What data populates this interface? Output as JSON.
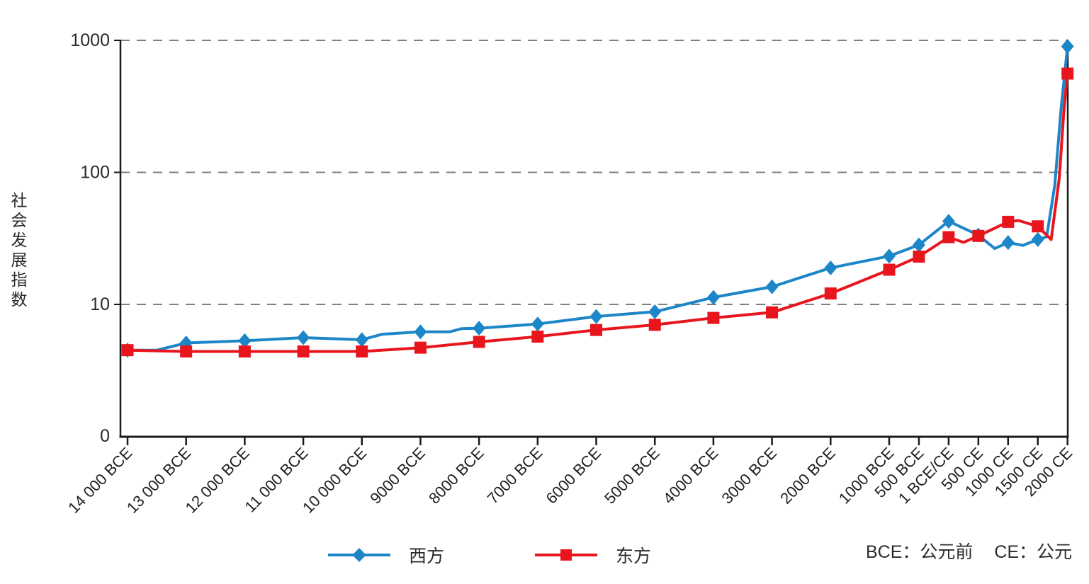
{
  "chart_data": {
    "type": "line",
    "y_scale": "log",
    "ylabel": "社会发展指数",
    "y_tick_labels": [
      "0",
      "10",
      "100",
      "1000"
    ],
    "y_gridlines_at": [
      10,
      100,
      1000
    ],
    "ylim": [
      1,
      1000
    ],
    "grid": "dashed horizontal gridlines at 10, 100, 1000",
    "legend_position": "bottom",
    "categories": [
      "14 000 BCE",
      "13 000 BCE",
      "12 000 BCE",
      "11 000 BCE",
      "10 000 BCE",
      "9000 BCE",
      "8000 BCE",
      "7000 BCE",
      "6000 BCE",
      "5000 BCE",
      "4000 BCE",
      "3000 BCE",
      "2000 BCE",
      "1000 BCE",
      "500 BCE",
      "1 BCE/CE",
      "500 CE",
      "1000 CE",
      "1500 CE",
      "2000 CE"
    ],
    "series": [
      {
        "name": "西方",
        "color": "#1d86c8",
        "marker": "diamond",
        "values": [
          4.5,
          5.1,
          5.3,
          5.6,
          5.4,
          6.2,
          6.6,
          7.1,
          8.1,
          8.8,
          11.3,
          13.6,
          18.9,
          23.2,
          28.2,
          42.6,
          33.5,
          29.4,
          31,
          900
        ],
        "line_shape_points": [
          {
            "i": 0.5,
            "v": 4.5
          },
          {
            "i": 4.35,
            "v": 5.95
          },
          {
            "i": 5.5,
            "v": 6.2
          },
          {
            "i": 5.7,
            "v": 6.55
          },
          {
            "i": 16.55,
            "v": 26.5
          },
          {
            "i": 17.5,
            "v": 28.0
          },
          {
            "i": 18.3,
            "v": 32.5
          },
          {
            "i": 18.57,
            "v": 80
          },
          {
            "i": 18.78,
            "v": 300
          }
        ]
      },
      {
        "name": "东方",
        "color": "#e8151d",
        "marker": "square",
        "values": [
          4.5,
          4.4,
          4.4,
          4.4,
          4.4,
          4.7,
          5.2,
          5.7,
          6.4,
          7.0,
          7.9,
          8.7,
          12.1,
          18.3,
          23,
          32.3,
          33,
          42.2,
          39,
          560
        ],
        "line_shape_points": [
          {
            "i": 15.5,
            "v": 29.5
          },
          {
            "i": 17.35,
            "v": 43.2
          },
          {
            "i": 18.45,
            "v": 31
          },
          {
            "i": 18.72,
            "v": 90
          },
          {
            "i": 18.88,
            "v": 300
          }
        ]
      }
    ],
    "footnote": {
      "bce": "BCE：公元前",
      "ce": "CE：公元"
    }
  },
  "legend": {
    "west_label": "西方",
    "east_label": "东方"
  },
  "colors": {
    "west": "#1d86c8",
    "east": "#e8151d",
    "grid": "#7f7f7f",
    "axis": "#1a1a1a",
    "text": "#2b2b2b"
  }
}
